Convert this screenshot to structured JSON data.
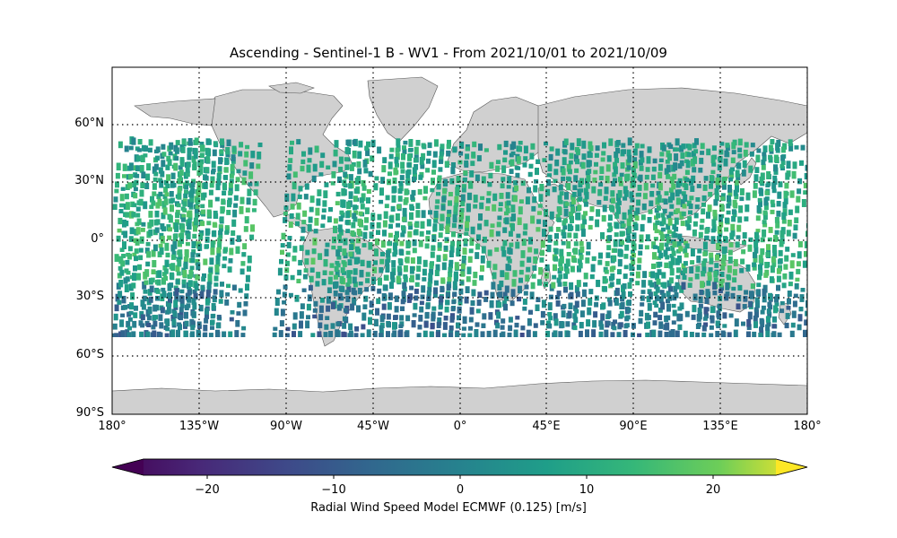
{
  "title": "Ascending - Sentinel-1 B - WV1 - From 2021/10/01 to 2021/10/09",
  "lat_labels": [
    "60°N",
    "30°N",
    "0°",
    "30°S",
    "60°S",
    "90°S"
  ],
  "lon_labels": [
    "180°",
    "135°W",
    "90°W",
    "45°W",
    "0°",
    "45°E",
    "90°E",
    "135°E",
    "180°"
  ],
  "colorbar": {
    "label": "Radial Wind Speed Model ECMWF (0.125) [m/s]",
    "ticks": [
      "−20",
      "−10",
      "0",
      "10",
      "20"
    ],
    "tick_values": [
      -20,
      -10,
      0,
      10,
      20
    ],
    "range": [
      -25,
      25
    ],
    "colormap": "viridis",
    "extend": "both"
  },
  "colors": {
    "land": "#d0d0d0",
    "ocean": "#ffffff",
    "coast": "#555555",
    "grid": "#000000"
  },
  "map": {
    "projection": "PlateCarree",
    "lon_range": [
      -180,
      180
    ],
    "lat_range": [
      -90,
      90
    ],
    "gridlines": "dotted",
    "data_lat_range": [
      -50,
      50
    ]
  }
}
